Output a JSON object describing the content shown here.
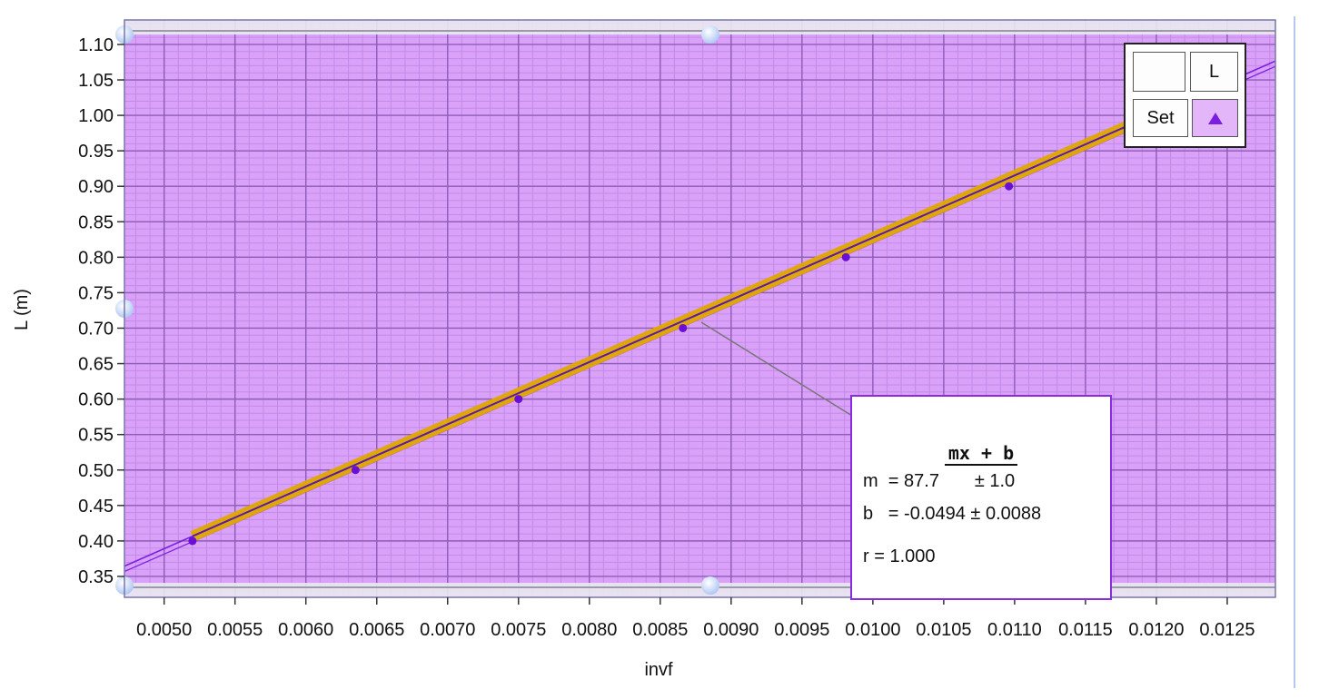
{
  "chart_data": {
    "type": "scatter",
    "title": "",
    "xlabel": "invf",
    "ylabel": "L (m)",
    "xlim": [
      0.00472,
      0.01284
    ],
    "ylim": [
      0.3205,
      1.1345
    ],
    "x_ticks": [
      0.005,
      0.0055,
      0.006,
      0.0065,
      0.007,
      0.0075,
      0.008,
      0.0085,
      0.009,
      0.0095,
      0.01,
      0.0105,
      0.011,
      0.0115,
      0.012,
      0.0125
    ],
    "x_tick_labels": [
      "0.0050",
      "0.0055",
      "0.0060",
      "0.0065",
      "0.0070",
      "0.0075",
      "0.0080",
      "0.0085",
      "0.0090",
      "0.0095",
      "0.0100",
      "0.0105",
      "0.0110",
      "0.0115",
      "0.0120",
      "0.0125"
    ],
    "y_ticks": [
      0.35,
      0.4,
      0.45,
      0.5,
      0.55,
      0.6,
      0.65,
      0.7,
      0.75,
      0.8,
      0.85,
      0.9,
      0.95,
      1.0,
      1.05,
      1.1
    ],
    "y_tick_labels": [
      "0.35",
      "0.40",
      "0.45",
      "0.50",
      "0.55",
      "0.60",
      "0.65",
      "0.70",
      "0.75",
      "0.80",
      "0.85",
      "0.90",
      "0.95",
      "1.00",
      "1.05",
      "1.10"
    ],
    "series": [
      {
        "name": "L",
        "x": [
          0.0052,
          0.00635,
          0.0075,
          0.00866,
          0.00981,
          0.01096
        ],
        "y": [
          0.4,
          0.5,
          0.6,
          0.7,
          0.8,
          0.9
        ]
      }
    ],
    "fit": {
      "slope": 87.7,
      "intercept": -0.0494,
      "band_end_x": 0.01215
    },
    "grid": true,
    "colors": {
      "plot_bg": "#d9a1f7",
      "grid_major": "#8d5cb8",
      "grid_minor": "#c48aea",
      "point": "#6a0fd6",
      "fit_line": "#7a1fe0",
      "band": "#e0a800",
      "band_line": "#5a1aa8"
    }
  },
  "legend": {
    "top_left": "",
    "top_right": "L",
    "bottom_left": "Set",
    "bottom_right_icon": "triangle-up-icon"
  },
  "fit_box": {
    "title": "mx + b",
    "m_line": "m  = 87.7       ± 1.0",
    "b_line": "b   = -0.0494 ± 0.0088",
    "r_line": "r = 1.000"
  }
}
